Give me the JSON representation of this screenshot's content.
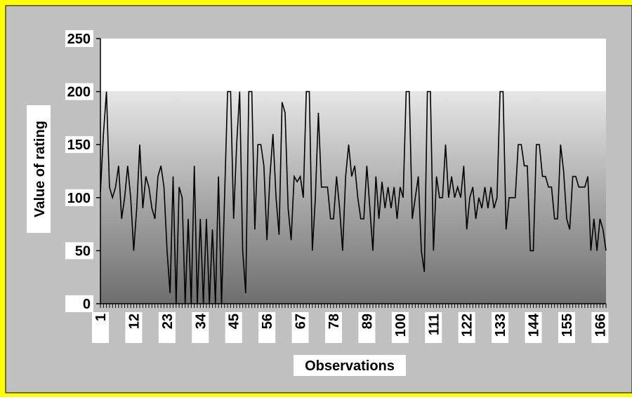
{
  "chart_data": {
    "type": "line",
    "title": "",
    "xlabel": "Observations",
    "ylabel": "Value of rating",
    "ylim": [
      0,
      250
    ],
    "yticks": [
      0,
      50,
      100,
      150,
      200,
      250
    ],
    "xlim": [
      1,
      168
    ],
    "xticks": [
      1,
      12,
      23,
      34,
      45,
      56,
      67,
      78,
      89,
      100,
      111,
      122,
      133,
      144,
      155,
      166
    ],
    "grid": false,
    "legend": "none",
    "series": [
      {
        "values": [
          105,
          160,
          200,
          110,
          100,
          110,
          130,
          80,
          100,
          130,
          100,
          50,
          90,
          150,
          90,
          120,
          110,
          90,
          80,
          120,
          130,
          110,
          50,
          10,
          120,
          0,
          110,
          100,
          0,
          80,
          0,
          130,
          0,
          80,
          0,
          80,
          0,
          70,
          0,
          120,
          0,
          100,
          200,
          200,
          80,
          150,
          200,
          50,
          10,
          200,
          200,
          70,
          150,
          150,
          130,
          60,
          120,
          160,
          100,
          65,
          190,
          180,
          90,
          60,
          120,
          115,
          120,
          100,
          200,
          200,
          50,
          100,
          180,
          110,
          110,
          110,
          80,
          80,
          120,
          90,
          50,
          120,
          150,
          120,
          130,
          100,
          80,
          80,
          130,
          90,
          50,
          120,
          80,
          115,
          90,
          110,
          90,
          110,
          80,
          110,
          100,
          200,
          200,
          80,
          100,
          120,
          50,
          30,
          200,
          200,
          50,
          120,
          100,
          100,
          150,
          100,
          120,
          100,
          110,
          100,
          130,
          70,
          100,
          110,
          80,
          100,
          90,
          110,
          90,
          110,
          90,
          100,
          200,
          200,
          70,
          100,
          100,
          100,
          150,
          150,
          130,
          130,
          50,
          50,
          150,
          150,
          120,
          120,
          110,
          110,
          80,
          80,
          150,
          125,
          80,
          70,
          120,
          120,
          110,
          110,
          110,
          120,
          50,
          80,
          50,
          80,
          70,
          50
        ]
      }
    ],
    "colors": {
      "outer_background": "#ffff00",
      "chart_area": "#c0c0c0",
      "plot_upper": "#ffffff",
      "gradient_top": "#e6e6e6",
      "gradient_bottom": "#6e6e6e",
      "line": "#000000"
    }
  }
}
